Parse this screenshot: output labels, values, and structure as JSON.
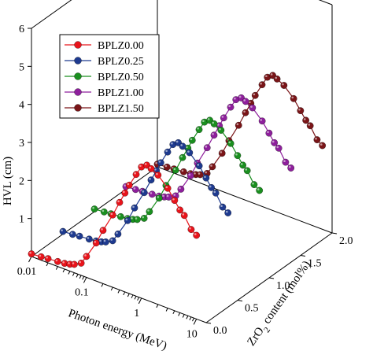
{
  "chart_data": {
    "type": "scatter",
    "subtype": "3d-line-scatter",
    "title": "",
    "ylabel": "HVL (cm)",
    "xlabel": "Photon energy (MeV)",
    "zlabel": {
      "main": "ZrO",
      "sub": "2",
      "rest": " content (mol%)"
    },
    "x_scale": "log",
    "x_ticks": [
      {
        "value": 0.01,
        "label": "0.01"
      },
      {
        "value": 0.1,
        "label": "0.1"
      },
      {
        "value": 1,
        "label": "1"
      },
      {
        "value": 10,
        "label": "10"
      }
    ],
    "y_ticks": [
      {
        "value": 1,
        "label": "1"
      },
      {
        "value": 2,
        "label": "2"
      },
      {
        "value": 3,
        "label": "3"
      },
      {
        "value": 4,
        "label": "4"
      },
      {
        "value": 5,
        "label": "5"
      },
      {
        "value": 6,
        "label": "6"
      }
    ],
    "z_ticks": [
      {
        "value": 0.0,
        "label": "0.0"
      },
      {
        "value": 0.5,
        "label": "0.5"
      },
      {
        "value": 1.0,
        "label": "1.0"
      },
      {
        "value": 1.5,
        "label": "1.5"
      },
      {
        "value": 2.0,
        "label": "2.0"
      }
    ],
    "xlim": [
      0.01,
      15
    ],
    "ylim": [
      0,
      6
    ],
    "zlim": [
      0,
      2
    ],
    "legend_position": "top-left",
    "series": [
      {
        "name": "BPLZ0.00",
        "z": 0.0,
        "color": "#e8141b",
        "points": [
          [
            0.01,
            0.07
          ],
          [
            0.015,
            0.09
          ],
          [
            0.02,
            0.11
          ],
          [
            0.03,
            0.13
          ],
          [
            0.04,
            0.15
          ],
          [
            0.05,
            0.18
          ],
          [
            0.06,
            0.22
          ],
          [
            0.08,
            0.32
          ],
          [
            0.1,
            0.55
          ],
          [
            0.15,
            1.0
          ],
          [
            0.2,
            1.4
          ],
          [
            0.3,
            1.9
          ],
          [
            0.4,
            2.3
          ],
          [
            0.5,
            2.6
          ],
          [
            0.6,
            2.85
          ],
          [
            0.8,
            3.2
          ],
          [
            1.0,
            3.45
          ],
          [
            1.25,
            3.55
          ],
          [
            1.5,
            3.5
          ],
          [
            2.0,
            3.4
          ],
          [
            3.0,
            3.15
          ],
          [
            4.0,
            2.9
          ],
          [
            5.0,
            2.7
          ],
          [
            6.0,
            2.6
          ],
          [
            8.0,
            2.3
          ],
          [
            10.0,
            2.2
          ]
        ]
      },
      {
        "name": "BPLZ0.25",
        "z": 0.5,
        "color": "#1e3a8f",
        "points": [
          [
            0.01,
            0.07
          ],
          [
            0.015,
            0.09
          ],
          [
            0.02,
            0.11
          ],
          [
            0.03,
            0.13
          ],
          [
            0.04,
            0.15
          ],
          [
            0.05,
            0.18
          ],
          [
            0.06,
            0.22
          ],
          [
            0.08,
            0.32
          ],
          [
            0.1,
            0.55
          ],
          [
            0.15,
            1.0
          ],
          [
            0.2,
            1.4
          ],
          [
            0.3,
            1.9
          ],
          [
            0.4,
            2.3
          ],
          [
            0.5,
            2.6
          ],
          [
            0.6,
            2.85
          ],
          [
            0.8,
            3.2
          ],
          [
            1.0,
            3.45
          ],
          [
            1.25,
            3.55
          ],
          [
            1.5,
            3.5
          ],
          [
            2.0,
            3.4
          ],
          [
            3.0,
            3.15
          ],
          [
            4.0,
            2.9
          ],
          [
            5.0,
            2.7
          ],
          [
            6.0,
            2.6
          ],
          [
            8.0,
            2.3
          ],
          [
            10.0,
            2.2
          ]
        ]
      },
      {
        "name": "BPLZ0.50",
        "z": 1.0,
        "color": "#1a8f1f",
        "points": [
          [
            0.01,
            0.07
          ],
          [
            0.015,
            0.09
          ],
          [
            0.02,
            0.11
          ],
          [
            0.03,
            0.13
          ],
          [
            0.04,
            0.15
          ],
          [
            0.05,
            0.18
          ],
          [
            0.06,
            0.22
          ],
          [
            0.08,
            0.32
          ],
          [
            0.1,
            0.55
          ],
          [
            0.15,
            1.0
          ],
          [
            0.2,
            1.4
          ],
          [
            0.3,
            1.9
          ],
          [
            0.4,
            2.3
          ],
          [
            0.5,
            2.6
          ],
          [
            0.6,
            2.85
          ],
          [
            0.8,
            3.2
          ],
          [
            1.0,
            3.45
          ],
          [
            1.25,
            3.55
          ],
          [
            1.5,
            3.5
          ],
          [
            2.0,
            3.4
          ],
          [
            3.0,
            3.15
          ],
          [
            4.0,
            2.9
          ],
          [
            5.0,
            2.7
          ],
          [
            6.0,
            2.6
          ],
          [
            8.0,
            2.3
          ],
          [
            10.0,
            2.2
          ]
        ]
      },
      {
        "name": "BPLZ1.00",
        "z": 1.5,
        "color": "#8e1f9c",
        "points": [
          [
            0.01,
            0.07
          ],
          [
            0.015,
            0.09
          ],
          [
            0.02,
            0.11
          ],
          [
            0.03,
            0.13
          ],
          [
            0.04,
            0.15
          ],
          [
            0.05,
            0.18
          ],
          [
            0.06,
            0.22
          ],
          [
            0.08,
            0.32
          ],
          [
            0.1,
            0.55
          ],
          [
            0.15,
            1.0
          ],
          [
            0.2,
            1.4
          ],
          [
            0.3,
            1.9
          ],
          [
            0.4,
            2.3
          ],
          [
            0.5,
            2.6
          ],
          [
            0.6,
            2.85
          ],
          [
            0.8,
            3.2
          ],
          [
            1.0,
            3.45
          ],
          [
            1.25,
            3.55
          ],
          [
            1.5,
            3.5
          ],
          [
            2.0,
            3.4
          ],
          [
            3.0,
            3.15
          ],
          [
            4.0,
            2.9
          ],
          [
            5.0,
            2.7
          ],
          [
            6.0,
            2.6
          ],
          [
            8.0,
            2.3
          ],
          [
            10.0,
            2.2
          ]
        ]
      },
      {
        "name": "BPLZ1.50",
        "z": 2.0,
        "color": "#7a1518",
        "points": [
          [
            0.01,
            0.07
          ],
          [
            0.015,
            0.09
          ],
          [
            0.02,
            0.11
          ],
          [
            0.03,
            0.13
          ],
          [
            0.04,
            0.15
          ],
          [
            0.05,
            0.18
          ],
          [
            0.06,
            0.22
          ],
          [
            0.08,
            0.32
          ],
          [
            0.1,
            0.55
          ],
          [
            0.15,
            1.0
          ],
          [
            0.2,
            1.4
          ],
          [
            0.3,
            1.9
          ],
          [
            0.4,
            2.3
          ],
          [
            0.5,
            2.6
          ],
          [
            0.6,
            2.85
          ],
          [
            0.8,
            3.2
          ],
          [
            1.0,
            3.45
          ],
          [
            1.25,
            3.55
          ],
          [
            1.5,
            3.5
          ],
          [
            2.0,
            3.4
          ],
          [
            3.0,
            3.15
          ],
          [
            4.0,
            2.9
          ],
          [
            5.0,
            2.7
          ],
          [
            6.0,
            2.6
          ],
          [
            8.0,
            2.3
          ],
          [
            10.0,
            2.2
          ]
        ]
      }
    ]
  }
}
